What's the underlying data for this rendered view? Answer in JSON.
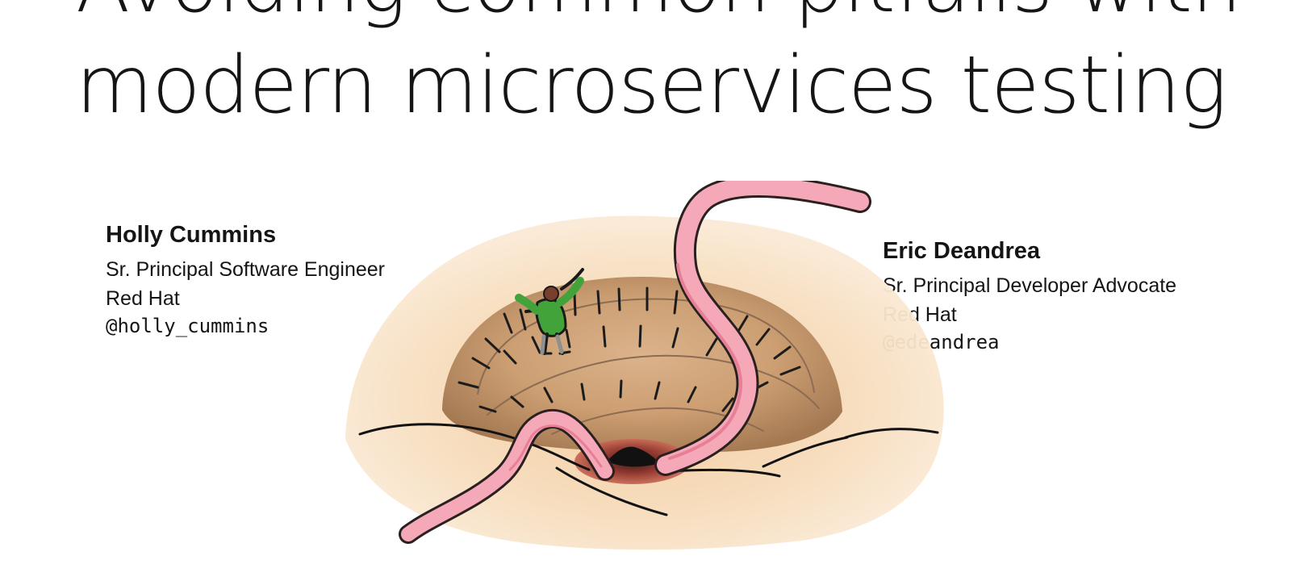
{
  "slide": {
    "title_line_1": "Avoiding common pitfalls with",
    "title_line_2": "modern microservices testing"
  },
  "speakers": [
    {
      "name": "Holly Cummins",
      "role": "Sr. Principal Software Engineer",
      "company": "Red Hat",
      "handle": "@holly_cummins"
    },
    {
      "name": "Eric Deandrea",
      "role": "Sr. Principal Developer Advocate",
      "company": "Red Hat",
      "handle": "@edeandrea"
    }
  ],
  "illustration": {
    "icon": "worm-mound-illustration-icon",
    "colors": {
      "sand": "#f4d7ad",
      "mound": "#b98255",
      "worm": "#f3a8b6",
      "person_jacket": "#42a33a"
    }
  }
}
